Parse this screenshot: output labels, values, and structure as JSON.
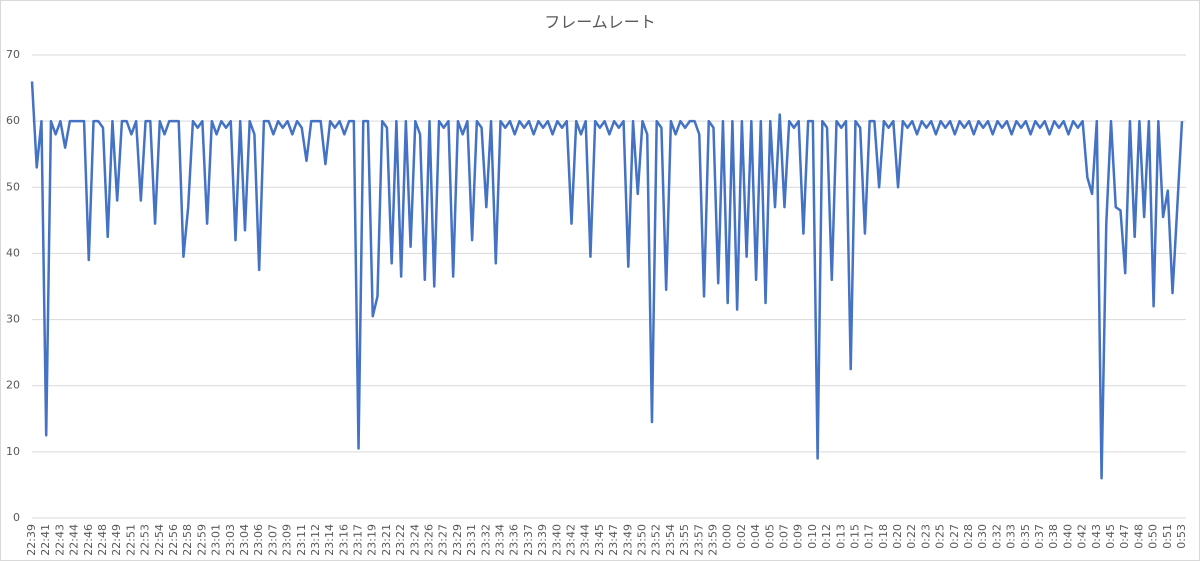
{
  "chart_data": {
    "type": "line",
    "title": "フレームレート",
    "categories": [
      "22:39",
      null,
      null,
      "22:41",
      null,
      null,
      "22:43",
      null,
      null,
      "22:44",
      null,
      null,
      "22:46",
      null,
      null,
      "22:48",
      null,
      null,
      "22:49",
      null,
      null,
      "22:51",
      null,
      null,
      "22:53",
      null,
      null,
      "22:54",
      null,
      null,
      "22:56",
      null,
      null,
      "22:58",
      null,
      null,
      "22:59",
      null,
      null,
      "23:01",
      null,
      null,
      "23:03",
      null,
      null,
      "23:04",
      null,
      null,
      "23:06",
      null,
      null,
      "23:07",
      null,
      null,
      "23:09",
      null,
      null,
      "23:11",
      null,
      null,
      "23:12",
      null,
      null,
      "23:14",
      null,
      null,
      "23:16",
      null,
      null,
      "23:17",
      null,
      null,
      "23:19",
      null,
      null,
      "23:21",
      null,
      null,
      "23:22",
      null,
      null,
      "23:24",
      null,
      null,
      "23:26",
      null,
      null,
      "23:27",
      null,
      null,
      "23:29",
      null,
      null,
      "23:31",
      null,
      null,
      "23:32",
      null,
      null,
      "23:34",
      null,
      null,
      "23:36",
      null,
      null,
      "23:37",
      null,
      null,
      "23:39",
      null,
      null,
      "23:40",
      null,
      null,
      "23:42",
      null,
      null,
      "23:44",
      null,
      null,
      "23:45",
      null,
      null,
      "23:47",
      null,
      null,
      "23:49",
      null,
      null,
      "23:50",
      null,
      null,
      "23:52",
      null,
      null,
      "23:54",
      null,
      null,
      "23:55",
      null,
      null,
      "23:57",
      null,
      null,
      "23:59",
      null,
      null,
      "0:00",
      null,
      null,
      "0:02",
      null,
      null,
      "0:04",
      null,
      null,
      "0:05",
      null,
      null,
      "0:07",
      null,
      null,
      "0:09",
      null,
      null,
      "0:10",
      null,
      null,
      "0:12",
      null,
      null,
      "0:13",
      null,
      null,
      "0:15",
      null,
      null,
      "0:17",
      null,
      null,
      "0:18",
      null,
      null,
      "0:20",
      null,
      null,
      "0:22",
      null,
      null,
      "0:23",
      null,
      null,
      "0:25",
      null,
      null,
      "0:27",
      null,
      null,
      "0:28",
      null,
      null,
      "0:30",
      null,
      null,
      "0:32",
      null,
      null,
      "0:33",
      null,
      null,
      "0:35",
      null,
      null,
      "0:37",
      null,
      null,
      "0:38",
      null,
      null,
      "0:40",
      null,
      null,
      "0:42",
      null,
      null,
      "0:43",
      null,
      null,
      "0:45",
      null,
      null,
      "0:47",
      null,
      null,
      "0:48",
      null,
      null,
      "0:50",
      null,
      null,
      "0:51",
      null,
      null,
      "0:53"
    ],
    "values": [
      66,
      53,
      60,
      12.5,
      60,
      58,
      60,
      56,
      60,
      60,
      60,
      60,
      39,
      60,
      60,
      59,
      42.5,
      60,
      48,
      60,
      60,
      58,
      60,
      48,
      60,
      60,
      44.5,
      60,
      58,
      60,
      60,
      60,
      39.5,
      47,
      60,
      59,
      60,
      44.5,
      60,
      58,
      60,
      59,
      60,
      42,
      60,
      43.5,
      60,
      58,
      37.5,
      60,
      60,
      58,
      60,
      59,
      60,
      58,
      60,
      59,
      54,
      60,
      60,
      60,
      53.5,
      60,
      59,
      60,
      58,
      60,
      60,
      10.5,
      60,
      60,
      30.5,
      33.5,
      60,
      59,
      38.5,
      60,
      36.5,
      60,
      41,
      60,
      58,
      36,
      60,
      35,
      60,
      59,
      60,
      36.5,
      60,
      58,
      60,
      42,
      60,
      59,
      47,
      60,
      38.5,
      60,
      59,
      60,
      58,
      60,
      59,
      60,
      58,
      60,
      59,
      60,
      58,
      60,
      59,
      60,
      44.5,
      60,
      58,
      60,
      39.5,
      60,
      59,
      60,
      58,
      60,
      59,
      60,
      38,
      60,
      49,
      60,
      58,
      14.5,
      60,
      59,
      34.5,
      60,
      58,
      60,
      59,
      60,
      60,
      58,
      33.5,
      60,
      59,
      35.5,
      60,
      32.5,
      60,
      31.5,
      60,
      39.5,
      60,
      36,
      60,
      32.5,
      60,
      47,
      61,
      47,
      60,
      59,
      60,
      43,
      60,
      60,
      9,
      60,
      59,
      36,
      60,
      59,
      60,
      22.5,
      60,
      59,
      43,
      60,
      60,
      50,
      60,
      59,
      60,
      50,
      60,
      59,
      60,
      58,
      60,
      59,
      60,
      58,
      60,
      59,
      60,
      58,
      60,
      59,
      60,
      58,
      60,
      59,
      60,
      58,
      60,
      59,
      60,
      58,
      60,
      59,
      60,
      58,
      60,
      59,
      60,
      58,
      60,
      59,
      60,
      58,
      60,
      59,
      60,
      51.5,
      49,
      60,
      6,
      44.5,
      60,
      47,
      46.5,
      37,
      60,
      42.5,
      60,
      45.5,
      60,
      32,
      60,
      45.5,
      49.5,
      34,
      47,
      60
    ],
    "color": "#4472c4",
    "ylim": [
      0,
      70
    ],
    "yticks": [
      0,
      10,
      20,
      30,
      40,
      50,
      60,
      70
    ],
    "grid": true
  }
}
